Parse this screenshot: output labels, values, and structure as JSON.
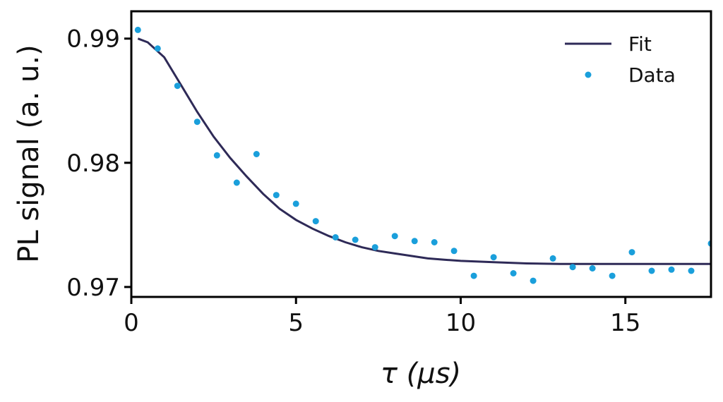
{
  "chart_data": {
    "type": "scatter",
    "xlabel": "τ (μs)",
    "ylabel": "PL signal (a. u.)",
    "xlim": [
      0,
      17.6
    ],
    "ylim": [
      0.9692,
      0.9922
    ],
    "x_ticks": [
      0,
      5,
      10,
      15
    ],
    "x_tick_labels": [
      "0",
      "5",
      "10",
      "15"
    ],
    "y_ticks": [
      0.97,
      0.98,
      0.99
    ],
    "y_tick_labels": [
      "0.97",
      "0.98",
      "0.99"
    ],
    "grid": false,
    "legend_position": "top-right",
    "series": [
      {
        "name": "Fit",
        "kind": "line",
        "color": "#2e2a57",
        "x": [
          0.2,
          0.5,
          1.0,
          1.5,
          2.0,
          2.5,
          3.0,
          3.5,
          4.0,
          4.5,
          5.0,
          5.5,
          6.0,
          6.5,
          7.0,
          7.5,
          8.0,
          8.5,
          9.0,
          9.5,
          10.0,
          11.0,
          12.0,
          13.0,
          14.0,
          15.0,
          16.0,
          17.0,
          17.6
        ],
        "y": [
          0.99,
          0.9897,
          0.9885,
          0.9863,
          0.9841,
          0.9821,
          0.9804,
          0.9789,
          0.9775,
          0.9763,
          0.9754,
          0.9747,
          0.9741,
          0.9736,
          0.9732,
          0.9729,
          0.9727,
          0.9725,
          0.9723,
          0.9722,
          0.9721,
          0.972,
          0.9719,
          0.97185,
          0.97185,
          0.97185,
          0.97185,
          0.97185,
          0.97185
        ]
      },
      {
        "name": "Data",
        "kind": "scatter",
        "color": "#1a9fdb",
        "x": [
          0.2,
          0.8,
          1.4,
          2.0,
          2.6,
          3.2,
          3.8,
          4.4,
          5.0,
          5.6,
          6.2,
          6.8,
          7.4,
          8.0,
          8.6,
          9.2,
          9.8,
          10.4,
          11.0,
          11.6,
          12.2,
          12.8,
          13.4,
          14.0,
          14.6,
          15.2,
          15.8,
          16.4,
          17.0,
          17.6
        ],
        "y": [
          0.9907,
          0.9892,
          0.9862,
          0.9833,
          0.9806,
          0.9784,
          0.9807,
          0.9774,
          0.9767,
          0.9753,
          0.974,
          0.9738,
          0.9732,
          0.9741,
          0.9737,
          0.9736,
          0.9729,
          0.9709,
          0.9724,
          0.9711,
          0.9705,
          0.9723,
          0.9716,
          0.9715,
          0.9709,
          0.9728,
          0.9713,
          0.9714,
          0.9713,
          0.9735
        ]
      }
    ]
  }
}
